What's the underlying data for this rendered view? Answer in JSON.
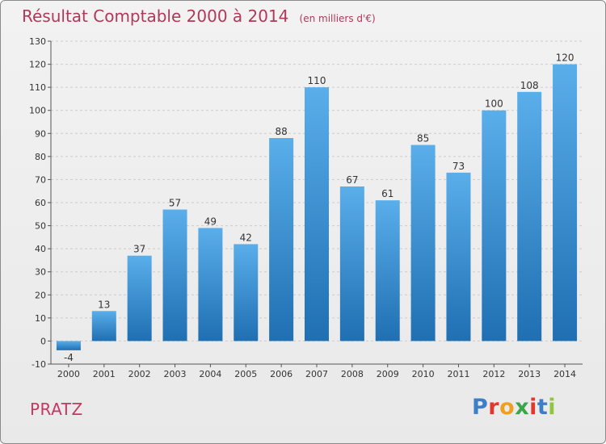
{
  "title": "Résultat Comptable 2000 à 2014",
  "unit_note": "(en milliers d'€)",
  "town": "PRATZ",
  "logo": {
    "text": "Proxiti",
    "letter_colors": [
      "#3c7fc6",
      "#e3372d",
      "#f0a020",
      "#3aa648",
      "#e3372d",
      "#3c7fc6",
      "#8ec63f"
    ]
  },
  "colors": {
    "bar": "#3a8fd6",
    "bar_dark": "#1f6fb2",
    "title": "#b0385a",
    "axis": "#555555",
    "grid": "#cccccc"
  },
  "chart_data": {
    "type": "bar",
    "title": "Résultat Comptable 2000 à 2014",
    "xlabel": "",
    "ylabel": "(en milliers d'€)",
    "categories": [
      "2000",
      "2001",
      "2002",
      "2003",
      "2004",
      "2005",
      "2006",
      "2007",
      "2008",
      "2009",
      "2010",
      "2011",
      "2012",
      "2013",
      "2014"
    ],
    "values": [
      -4,
      13,
      37,
      57,
      49,
      42,
      88,
      110,
      67,
      61,
      85,
      73,
      100,
      108,
      120
    ],
    "ylim": [
      -10,
      130
    ],
    "yticks": [
      -10,
      0,
      10,
      20,
      30,
      40,
      50,
      60,
      70,
      80,
      90,
      100,
      110,
      120,
      130
    ],
    "grid": true
  }
}
